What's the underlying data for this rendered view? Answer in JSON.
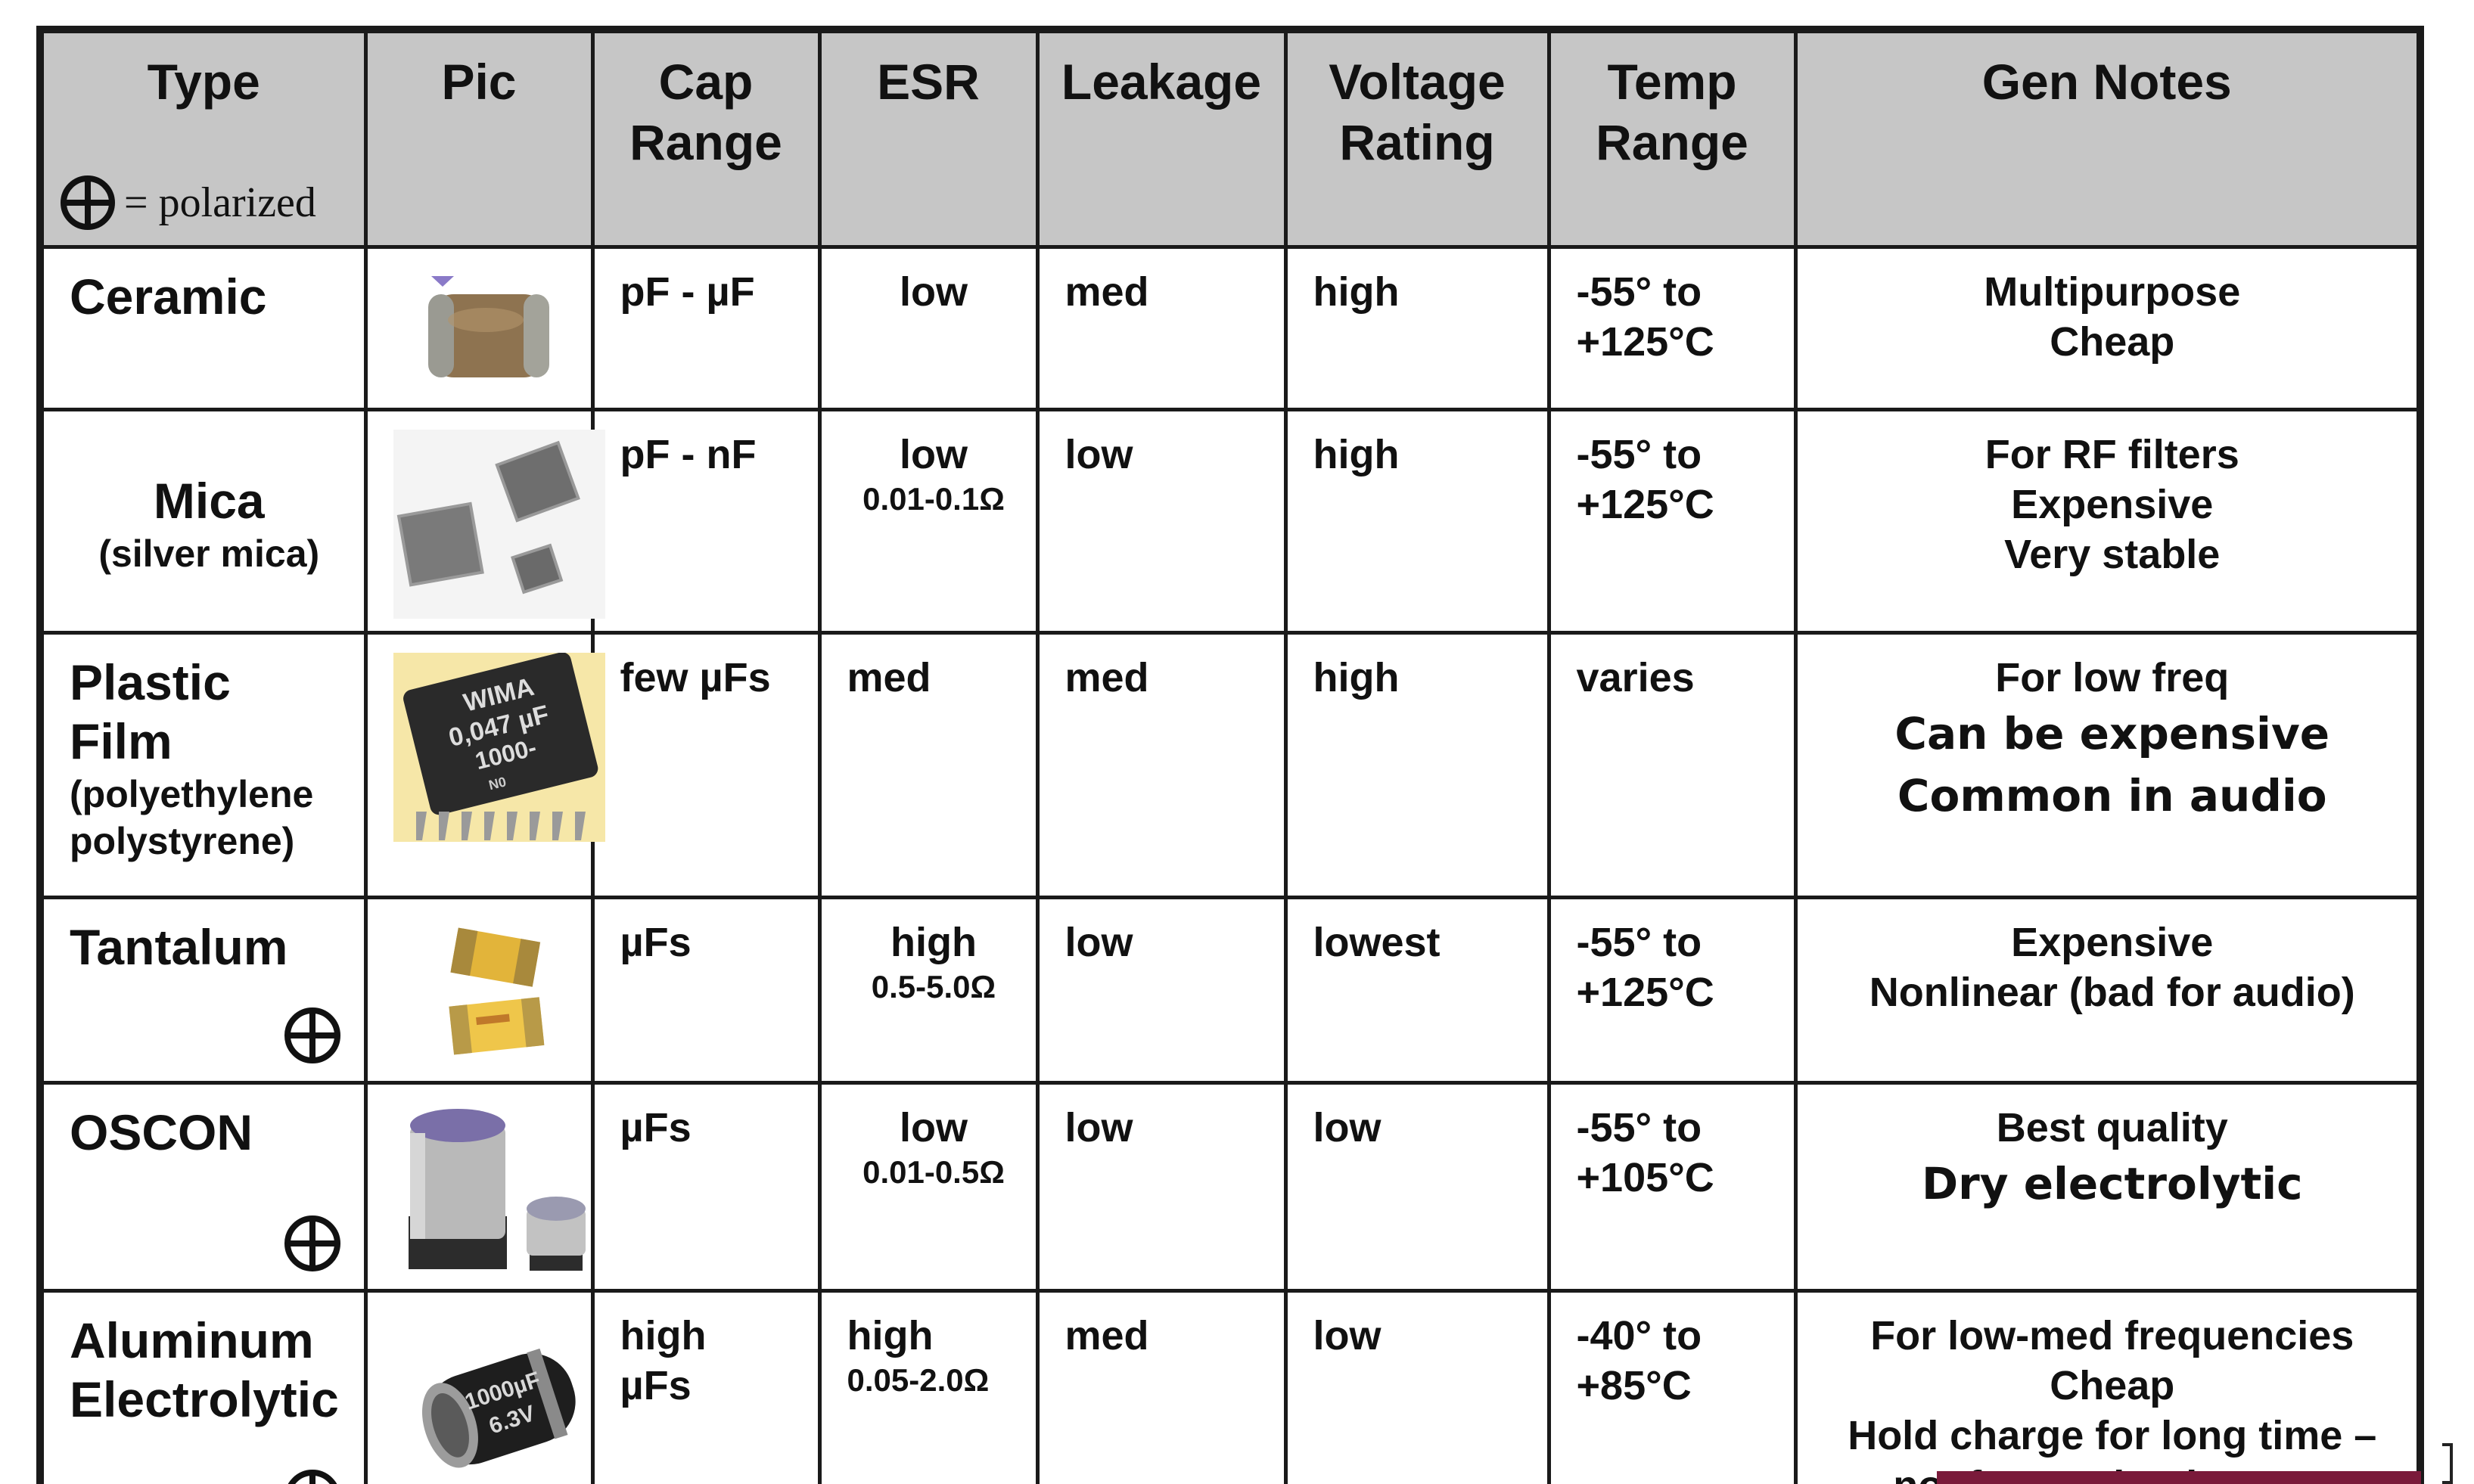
{
  "header": {
    "type": "Type",
    "pic": "Pic",
    "cap_range_1": "Cap",
    "cap_range_2": "Range",
    "esr": "ESR",
    "leakage": "Leakage",
    "voltage_1": "Voltage",
    "voltage_2": "Rating",
    "temp_1": "Temp",
    "temp_2": "Range",
    "notes": "Gen Notes",
    "polarized_key": "= polarized"
  },
  "rows": [
    {
      "type_main": "Ceramic",
      "type_sub": "",
      "cap": [
        "pF - µF"
      ],
      "esr": "low",
      "esr_range": "",
      "leakage": "med",
      "voltage": "high",
      "temp_1": "-55° to",
      "temp_2": "+125°C",
      "notes": [
        "Multipurpose",
        "Cheap"
      ],
      "notes_sans": []
    },
    {
      "type_main": "Mica",
      "type_sub": "(silver mica)",
      "cap": [
        "pF - nF"
      ],
      "esr": "low",
      "esr_range": "0.01-0.1Ω",
      "leakage": "low",
      "voltage": "high",
      "temp_1": "-55° to",
      "temp_2": "+125°C",
      "notes": [
        "For RF filters",
        "Expensive",
        "Very stable"
      ],
      "notes_sans": []
    },
    {
      "type_main_1": "Plastic",
      "type_main_2": "Film",
      "type_sub_1": "(polyethylene",
      "type_sub_2": "polystyrene)",
      "cap": [
        "few µFs"
      ],
      "esr": "med",
      "esr_range": "",
      "leakage": "med",
      "voltage": "high",
      "temp_1": "varies",
      "temp_2": "",
      "notes": [
        "For low freq"
      ],
      "notes_sans": [
        "Can be expensive",
        "Common in audio"
      ],
      "pic_label_1": "WIMA",
      "pic_label_2": "0,047 µF",
      "pic_label_3": "1000-",
      "pic_label_4": "N0"
    },
    {
      "type_main": "Tantalum",
      "type_sub": "",
      "cap": [
        "µFs"
      ],
      "esr": "high",
      "esr_range": "0.5-5.0Ω",
      "leakage": "low",
      "voltage": "lowest",
      "temp_1": "-55° to",
      "temp_2": "+125°C",
      "notes": [
        "Expensive",
        "Nonlinear (bad for audio)"
      ],
      "notes_sans": []
    },
    {
      "type_main": "OSCON",
      "type_sub": "",
      "cap": [
        "µFs"
      ],
      "esr": "low",
      "esr_range": "0.01-0.5Ω",
      "leakage": "low",
      "voltage": "low",
      "temp_1": "-55° to",
      "temp_2": "+105°C",
      "notes": [
        "Best quality"
      ],
      "notes_sans": [
        "Dry electrolytic"
      ]
    },
    {
      "type_main_1": "Aluminum",
      "type_main_2": "Electrolytic",
      "cap": [
        "high",
        "µFs"
      ],
      "esr": "high",
      "esr_range": "0.05-2.0Ω",
      "leakage": "med",
      "voltage": "low",
      "temp_1": "-40° to",
      "temp_2": "+85°C",
      "notes": [
        "For low-med frequencies",
        "Cheap",
        "Hold charge for long time –",
        "not for  production test"
      ],
      "notes_sans": [],
      "pic_label_1": "1000µF",
      "pic_label_2": "6.3V"
    }
  ],
  "colors": {
    "header_bg": "#c6c6c6",
    "border": "#1a1a1a",
    "text": "#111111"
  }
}
